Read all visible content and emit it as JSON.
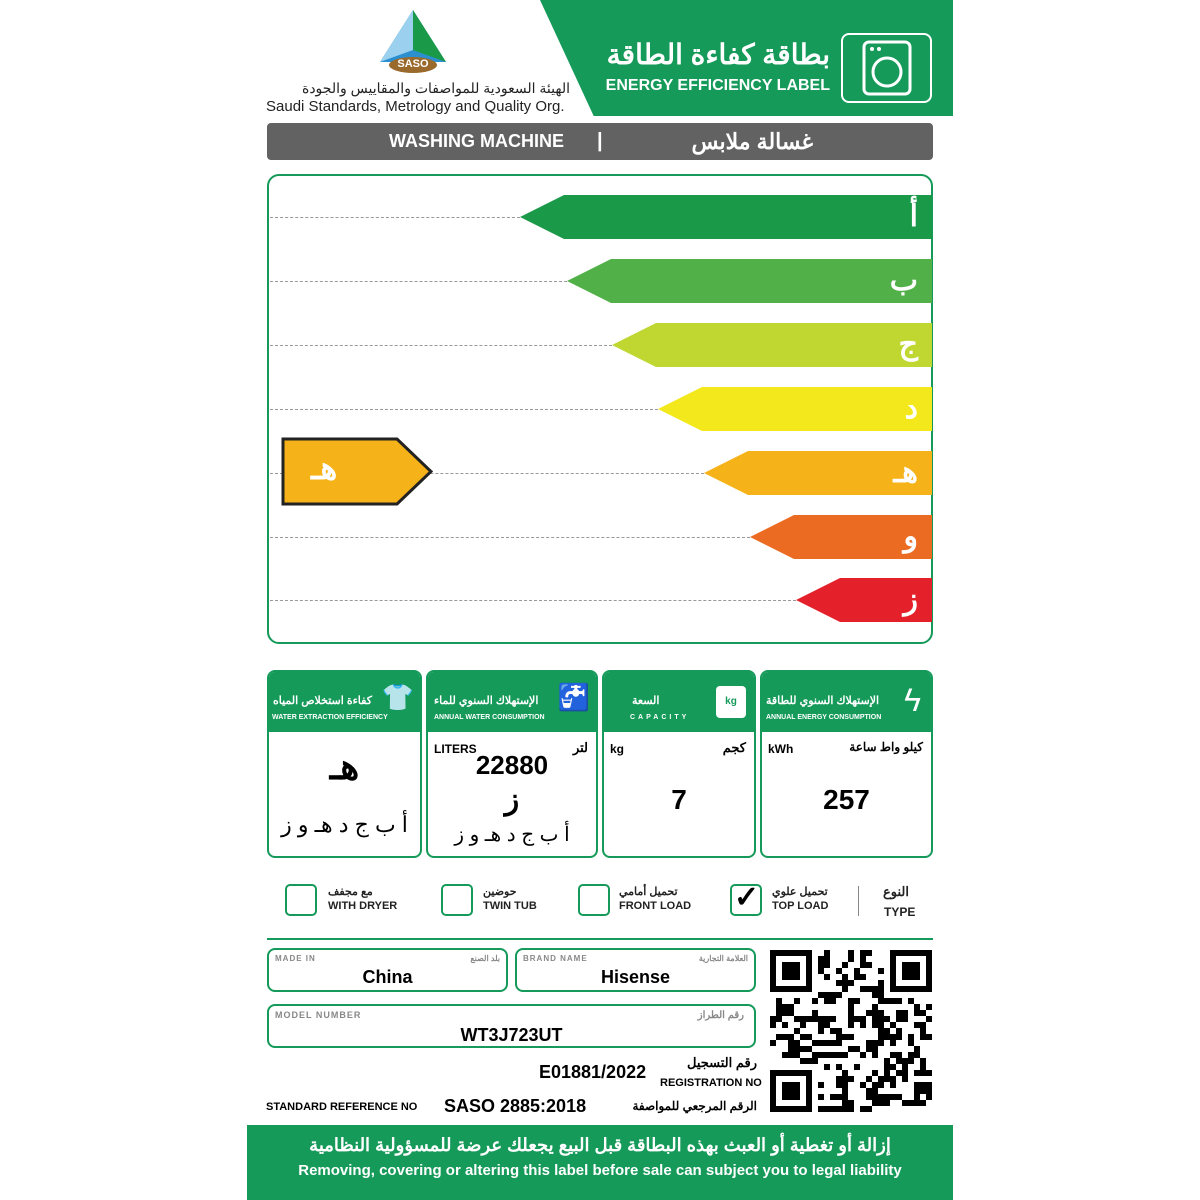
{
  "header": {
    "title_ar": "بطاقة كفاءة الطاقة",
    "title_en": "ENERGY EFFICIENCY LABEL",
    "logo_text": "SASO",
    "org_ar": "الهيئة السعودية للمواصفات والمقاييس والجودة",
    "org_en": "Saudi Standards, Metrology and Quality Org.",
    "icon": "washing-machine-icon"
  },
  "product": {
    "name_en": "WASHING MACHINE",
    "separator": "|",
    "name_ar": "غسالة ملابس"
  },
  "scale": {
    "grades": [
      {
        "label": "أ",
        "color": "#1a9a48"
      },
      {
        "label": "ب",
        "color": "#52b048"
      },
      {
        "label": "ج",
        "color": "#bfd730"
      },
      {
        "label": "د",
        "color": "#f2e81c"
      },
      {
        "label": "هـ",
        "color": "#f6b219"
      },
      {
        "label": "و",
        "color": "#ec6b22"
      },
      {
        "label": "ز",
        "color": "#e4212a"
      }
    ],
    "rating": "هـ",
    "rating_color": "#f6b219"
  },
  "cards": {
    "extraction": {
      "title_ar": "كفاءة استخلاص المياه",
      "title_en": "WATER EXTRACTION EFFICIENCY",
      "value": "هـ",
      "scale": "أ ب ج د هـ و ز"
    },
    "water": {
      "title_ar": "الإستهلاك السنوي للماء",
      "title_en": "ANNUAL WATER CONSUMPTION",
      "unit_en": "LITERS",
      "unit_ar": "لتر",
      "value": "22880",
      "grade": "ز",
      "scale": "أ ب ج د هـ و ز"
    },
    "capacity": {
      "title_ar": "السعة",
      "title_en": "CAPACITY",
      "unit_en": "kg",
      "unit_ar": "كجم",
      "value": "7",
      "icon_text": "kg"
    },
    "energy": {
      "title_ar": "الإستهلاك السنوي للطاقة",
      "title_en": "ANNUAL ENERGY CONSUMPTION",
      "unit_en": "kWh",
      "unit_ar": "كيلو واط ساعة",
      "value": "257"
    }
  },
  "type": {
    "label_ar": "النوع",
    "label_en": "TYPE",
    "options": [
      {
        "ar": "مع مجفف",
        "en": "WITH DRYER",
        "checked": false
      },
      {
        "ar": "حوضين",
        "en": "TWIN TUB",
        "checked": false
      },
      {
        "ar": "تحميل أمامي",
        "en": "FRONT LOAD",
        "checked": false
      },
      {
        "ar": "تحميل علوي",
        "en": "TOP LOAD",
        "checked": true
      }
    ]
  },
  "info": {
    "made_in": {
      "label_en": "MADE IN",
      "label_ar": "بلد الصنع",
      "value": "China"
    },
    "brand": {
      "label_en": "BRAND  NAME",
      "label_ar": "العلامة التجارية",
      "value": "Hisense"
    },
    "model": {
      "label_en": "MODEL NUMBER",
      "label_ar": "رقم الطراز",
      "value": "WT3J723UT"
    },
    "registration": {
      "label_ar": "رقم التسجيل",
      "label_en": "REGISTRATION NO",
      "value": "E01881/2022"
    },
    "standard": {
      "label_en": "STANDARD REFERENCE NO",
      "label_ar": "الرقم المرجعي للمواصفة",
      "value": "SASO 2885:2018"
    }
  },
  "footer": {
    "ar": "إزالة أو تغطية أو العبث بهذه البطاقة قبل البيع يجعلك عرضة للمسؤولية النظامية",
    "en": "Removing, covering or altering this label before sale can subject you to legal liability"
  }
}
